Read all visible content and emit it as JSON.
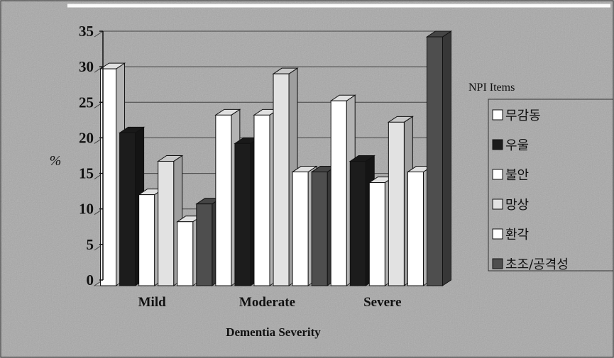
{
  "chart_data": {
    "type": "bar",
    "title": "",
    "xlabel": "Dementia Severity",
    "ylabel": "%",
    "ylim": [
      0,
      35
    ],
    "yticks": [
      0,
      5,
      10,
      15,
      20,
      25,
      30,
      35
    ],
    "grid": true,
    "legend_title": "NPI Items",
    "legend_position": "right",
    "categories": [
      "Mild",
      "Moderate",
      "Severe"
    ],
    "series": [
      {
        "name": "무감동",
        "color": "#ffffff",
        "values": [
          30.5,
          24,
          26
        ]
      },
      {
        "name": "우울",
        "color": "#1c1c1c",
        "values": [
          21.5,
          20,
          17.5
        ]
      },
      {
        "name": "불안",
        "color": "#ffffff",
        "values": [
          12.8,
          24,
          14.5
        ]
      },
      {
        "name": "망상",
        "color": "#e2e2e2",
        "values": [
          17.5,
          29.8,
          23
        ]
      },
      {
        "name": "환각",
        "color": "#ffffff",
        "values": [
          9,
          16,
          16
        ]
      },
      {
        "name": "초조/공격성",
        "color": "#4e4e4e",
        "values": [
          11.5,
          16,
          35
        ]
      }
    ]
  }
}
